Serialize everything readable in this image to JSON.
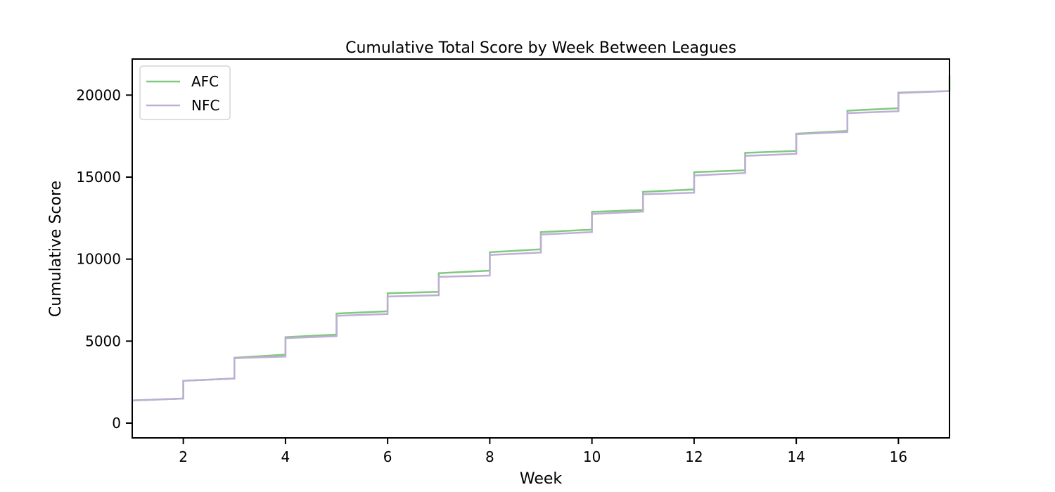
{
  "chart_data": {
    "type": "line",
    "title": "Cumulative Total Score by Week Between Leagues",
    "xlabel": "Week",
    "ylabel": "Cumulative Score",
    "xlim": [
      1,
      17
    ],
    "ylim": [
      -900,
      22200
    ],
    "x_ticks": [
      2,
      4,
      6,
      8,
      10,
      12,
      14,
      16
    ],
    "y_ticks": [
      0,
      5000,
      10000,
      15000,
      20000
    ],
    "grid": false,
    "legend": "top-left",
    "series": [
      {
        "name": "AFC",
        "color": "#7fc97f",
        "x": [
          1,
          2,
          2,
          3,
          3,
          4,
          4,
          5,
          5,
          6,
          6,
          7,
          7,
          8,
          8,
          9,
          9,
          10,
          10,
          11,
          11,
          12,
          12,
          13,
          13,
          14,
          14,
          15,
          15,
          16,
          16,
          17,
          17
        ],
        "values": [
          1380,
          1500,
          2580,
          2720,
          3980,
          4180,
          5240,
          5400,
          6680,
          6820,
          7920,
          8000,
          9140,
          9300,
          10420,
          10600,
          11650,
          11800,
          12880,
          13000,
          14100,
          14250,
          15300,
          15420,
          16480,
          16600,
          17650,
          17820,
          19050,
          19200,
          20150,
          20250,
          21200
        ]
      },
      {
        "name": "NFC",
        "color": "#beaed4",
        "x": [
          1,
          2,
          2,
          3,
          3,
          4,
          4,
          5,
          5,
          6,
          6,
          7,
          7,
          8,
          8,
          9,
          9,
          10,
          10,
          11,
          11,
          12,
          12,
          13,
          13,
          14,
          14,
          15,
          15,
          16,
          16,
          17
        ],
        "values": [
          1380,
          1500,
          2580,
          2720,
          3960,
          4060,
          5180,
          5300,
          6550,
          6650,
          7720,
          7800,
          8920,
          9000,
          10250,
          10400,
          11500,
          11650,
          12750,
          12900,
          13950,
          14050,
          15100,
          15250,
          16300,
          16420,
          17620,
          17750,
          18900,
          19020,
          20120,
          20250
        ]
      }
    ]
  }
}
